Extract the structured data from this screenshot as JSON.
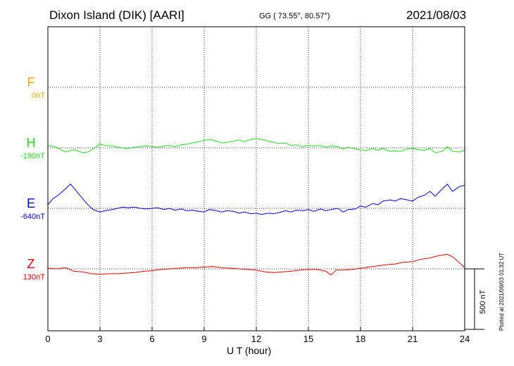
{
  "header": {
    "station": "Dixon Island (DIK)  [AARI]",
    "coords": "GG ( 73.55°,  80.57°)",
    "date": "2021/08/03"
  },
  "footer": {
    "plotted": "Plotted at 2021/09/03 01:32 UT"
  },
  "chart_data": {
    "type": "line",
    "xlabel": "U T (hour)",
    "xlim": [
      0,
      24
    ],
    "xticks": [
      0,
      3,
      6,
      9,
      12,
      15,
      18,
      21,
      24
    ],
    "grid": true,
    "scale_bar": {
      "label": "500 nT",
      "value_nT": 500
    },
    "channels": [
      {
        "letter": "F",
        "baseline_label": "0nT",
        "color": "#f0a800",
        "values": []
      },
      {
        "letter": "H",
        "baseline_label": "-190nT",
        "color": "#22dd22",
        "x": [
          0,
          0.5,
          1,
          1.5,
          2,
          2.3,
          2.6,
          3,
          3.3,
          3.7,
          4,
          4.3,
          4.6,
          5,
          5.3,
          5.7,
          6,
          6.3,
          6.7,
          7,
          7.3,
          7.7,
          8,
          8.3,
          8.7,
          9,
          9.3,
          9.7,
          10,
          10.3,
          10.7,
          11,
          11.3,
          11.7,
          12,
          12.3,
          12.7,
          13,
          13.3,
          13.7,
          14,
          14.3,
          14.7,
          15,
          15.3,
          15.7,
          16,
          16.3,
          16.7,
          17,
          17.3,
          17.7,
          18,
          18.3,
          18.7,
          19,
          19.3,
          19.7,
          20,
          20.3,
          20.7,
          21,
          21.3,
          21.7,
          22,
          22.3,
          22.7,
          23,
          23.3,
          23.7,
          24
        ],
        "y": [
          20,
          5,
          -35,
          -15,
          -40,
          -35,
          -10,
          30,
          20,
          15,
          5,
          0,
          -5,
          5,
          10,
          15,
          10,
          5,
          15,
          20,
          10,
          25,
          30,
          40,
          50,
          60,
          70,
          55,
          40,
          45,
          55,
          65,
          50,
          70,
          75,
          70,
          55,
          45,
          35,
          40,
          20,
          25,
          10,
          20,
          15,
          20,
          5,
          15,
          10,
          -10,
          5,
          -10,
          -15,
          -25,
          -5,
          -20,
          -5,
          -30,
          -25,
          -30,
          -10,
          -5,
          -15,
          -20,
          -5,
          -40,
          -30,
          10,
          -30,
          -35,
          -20
        ]
      },
      {
        "letter": "E",
        "baseline_label": "-640nT",
        "color": "#0000dd",
        "x": [
          0,
          0.3,
          0.6,
          1,
          1.3,
          1.6,
          2,
          2.3,
          2.6,
          3,
          3.3,
          3.7,
          4,
          4.3,
          4.6,
          5,
          5.3,
          5.7,
          6,
          6.3,
          6.7,
          7,
          7.3,
          7.7,
          8,
          8.3,
          8.7,
          9,
          9.3,
          9.7,
          10,
          10.3,
          10.7,
          11,
          11.3,
          11.7,
          12,
          12.3,
          12.7,
          13,
          13.3,
          13.7,
          14,
          14.3,
          14.7,
          15,
          15.3,
          15.7,
          16,
          16.3,
          16.7,
          17,
          17.3,
          17.7,
          18,
          18.3,
          18.7,
          19,
          19.3,
          19.7,
          20,
          20.3,
          20.7,
          21,
          21.3,
          21.7,
          22,
          22.3,
          22.7,
          23,
          23.3,
          23.7,
          24
        ],
        "y": [
          30,
          80,
          110,
          160,
          200,
          150,
          80,
          30,
          -10,
          -30,
          -20,
          -10,
          0,
          10,
          5,
          10,
          0,
          -5,
          0,
          5,
          -10,
          0,
          -15,
          -5,
          -20,
          -15,
          -25,
          -30,
          -10,
          -20,
          -30,
          -20,
          -25,
          -40,
          -30,
          -45,
          -40,
          -50,
          -40,
          -45,
          -35,
          -20,
          -30,
          -15,
          -20,
          -10,
          -25,
          -5,
          -20,
          -10,
          0,
          -30,
          -10,
          -5,
          20,
          10,
          40,
          30,
          60,
          70,
          60,
          80,
          70,
          60,
          90,
          110,
          140,
          100,
          160,
          200,
          140,
          180,
          190
        ]
      },
      {
        "letter": "Z",
        "baseline_label": "130nT",
        "color": "#ee0000",
        "x": [
          0,
          0.5,
          1,
          1.5,
          2,
          2.5,
          3,
          3.5,
          4,
          4.5,
          5,
          5.5,
          6,
          6.5,
          7,
          7.5,
          8,
          8.5,
          9,
          9.5,
          10,
          10.5,
          11,
          11.5,
          12,
          12.5,
          13,
          13.5,
          14,
          14.5,
          15,
          15.5,
          16,
          16.3,
          16.6,
          17,
          17.5,
          18,
          18.5,
          19,
          19.5,
          20,
          20.5,
          21,
          21.5,
          22,
          22.5,
          23,
          23.3,
          23.7,
          24
        ],
        "y": [
          5,
          0,
          10,
          -20,
          -25,
          -40,
          -45,
          -40,
          -40,
          -35,
          -30,
          -20,
          -15,
          -5,
          0,
          5,
          10,
          10,
          15,
          20,
          10,
          5,
          0,
          -5,
          -10,
          -25,
          -30,
          -25,
          -20,
          -10,
          -5,
          -5,
          -20,
          -50,
          -10,
          -10,
          -5,
          5,
          15,
          25,
          35,
          40,
          55,
          60,
          80,
          90,
          110,
          120,
          100,
          50,
          10
        ]
      }
    ]
  }
}
